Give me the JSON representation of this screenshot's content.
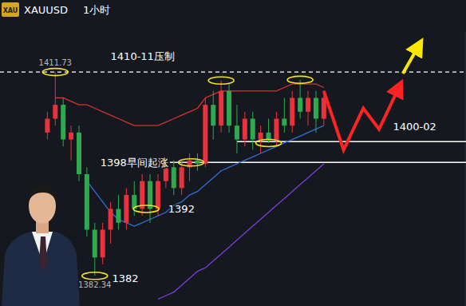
{
  "chart_data": {
    "type": "candlestick",
    "title": "XAUUSD",
    "subtitle": "1小时",
    "icon": "XAU",
    "categories": [
      null,
      null,
      null,
      null,
      null,
      null,
      null,
      null,
      null,
      null,
      null,
      null,
      null,
      null,
      null,
      null,
      null,
      null,
      null,
      null,
      null,
      null,
      null,
      null,
      null,
      null,
      null,
      null,
      null,
      null,
      null,
      null,
      null,
      null,
      null,
      null
    ],
    "open": [
      1403,
      1405,
      1407,
      1402,
      1403,
      1397,
      1389,
      1385,
      1389,
      1392,
      1390,
      1394,
      1392,
      1396,
      1392,
      1396,
      1398,
      1395,
      1398,
      1399,
      1398.5,
      1407,
      1404,
      1409,
      1404,
      1402,
      1405,
      1402,
      1403,
      1402,
      1405,
      1404,
      1408,
      1406,
      1408,
      1405
    ],
    "high": [
      1406,
      1411.73,
      1408,
      1404,
      1404,
      1398,
      1390,
      1390,
      1393,
      1394,
      1395,
      1396,
      1397,
      1397,
      1397,
      1399,
      1399,
      1399,
      1400,
      1400,
      1408,
      1409,
      1410.5,
      1410,
      1407,
      1406,
      1406,
      1404,
      1405,
      1406,
      1408,
      1409,
      1410.6,
      1409,
      1409,
      1409
    ],
    "low": [
      1402,
      1404,
      1401,
      1399,
      1396,
      1388,
      1382.34,
      1384,
      1387,
      1389,
      1389,
      1391,
      1391,
      1390,
      1391,
      1395,
      1394,
      1394,
      1396,
      1397.5,
      1398,
      1402,
      1403,
      1403,
      1400,
      1401,
      1400.5,
      1400,
      1401.5,
      1401,
      1403,
      1403,
      1405,
      1404,
      1403,
      1404
    ],
    "close": [
      1405,
      1407,
      1402,
      1403,
      1397,
      1389,
      1385,
      1389,
      1392,
      1390,
      1394,
      1392,
      1396,
      1392,
      1396,
      1398,
      1395,
      1398,
      1399,
      1398.5,
      1407,
      1404,
      1409,
      1404,
      1402,
      1405,
      1402,
      1403,
      1402,
      1405,
      1404,
      1408,
      1406,
      1408,
      1405,
      1408
    ],
    "lines": [
      {
        "color": "#d8322f",
        "values": [
          null,
          1408,
          1408,
          1407.5,
          1407,
          1407,
          1406.5,
          1406,
          1405.5,
          1405,
          1404.5,
          1404,
          1404,
          1404,
          1404,
          1404.5,
          1405,
          1405.5,
          1406,
          1406.5,
          1408,
          1408.5,
          1409,
          1409,
          1409,
          1409,
          1409,
          1409,
          1409,
          1409,
          1409.5,
          1410,
          1410,
          1410,
          1410,
          1409.5
        ]
      },
      {
        "color": "#2f6fd6",
        "values": [
          null,
          null,
          null,
          null,
          null,
          1396,
          1394.5,
          1393,
          1391.5,
          1390.5,
          1390,
          1389.5,
          1390,
          1390.5,
          1391,
          1391.5,
          1392.5,
          1393,
          1394,
          1394.5,
          1395.5,
          1396.5,
          1397.5,
          1398,
          1398.5,
          1399,
          1399.5,
          1400,
          1400.5,
          1401,
          1401.5,
          1402,
          1402.5,
          1403,
          1403.5,
          1404
        ]
      },
      {
        "color": "#7a3fd6",
        "values": [
          null,
          null,
          null,
          null,
          null,
          null,
          null,
          null,
          null,
          null,
          null,
          null,
          null,
          null,
          1379,
          1379.5,
          1380,
          1381,
          1382,
          1383,
          1383.5,
          1384.5,
          1385.5,
          1386.5,
          1387.5,
          1388.5,
          1389.5,
          1390.5,
          1391.5,
          1392.5,
          1393.5,
          1394.5,
          1395.5,
          1396.5,
          1397.5,
          1398.5
        ]
      }
    ],
    "levels": [
      {
        "value": 1411.73,
        "start": -6,
        "line_style": "dashed"
      },
      {
        "value": 1401.7,
        "start": 24,
        "line_style": "solid"
      },
      {
        "value": 1398.7,
        "start": 15.5,
        "line_style": "solid"
      }
    ],
    "annotations": [
      {
        "text": "1410-11压制",
        "index": 8,
        "value": 1413.5
      },
      {
        "text": "1398早间起涨",
        "index": 15.3,
        "value": 1398.2
      },
      {
        "text": "1400-02",
        "index": 46.5,
        "value": 1403.3
      }
    ],
    "price_marks": [
      {
        "value": 1392,
        "index": 15.3
      },
      {
        "value": 1382,
        "index": 8.2
      }
    ],
    "extreme_labels": [
      {
        "value": 1411.73,
        "index": 1
      },
      {
        "value": 1382.34,
        "index": 6
      }
    ],
    "highlights": [
      {
        "index": 1,
        "value": 1411.73
      },
      {
        "index": 22,
        "value": 1410.5
      },
      {
        "index": 32,
        "value": 1410.6
      },
      {
        "index": 28,
        "value": 1401.5
      },
      {
        "index": 18.2,
        "value": 1398.7
      },
      {
        "index": 12.5,
        "value": 1392
      },
      {
        "index": 6,
        "value": 1382.34
      }
    ],
    "projection": {
      "color": "#ff2424",
      "x": [
        35,
        37.5,
        40,
        42,
        44.5
      ],
      "values": [
        1409,
        1400.5,
        1406.5,
        1403.5,
        1409.5
      ]
    },
    "target": {
      "color": "#ffe600",
      "x": [
        45,
        47
      ],
      "values": [
        1411.5,
        1415.5
      ]
    },
    "xlim": [
      -6,
      53
    ],
    "ylim": [
      1378,
      1417.5
    ],
    "yticks": [],
    "tick_labels": false,
    "grid": false
  }
}
